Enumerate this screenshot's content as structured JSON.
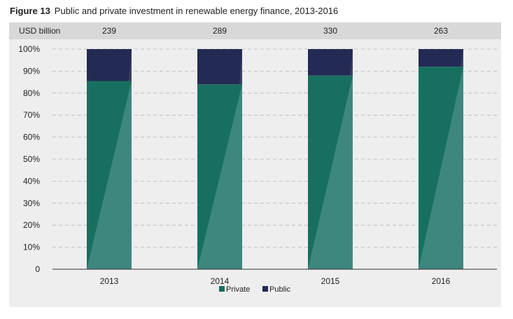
{
  "figure": {
    "number": "Figure 13",
    "title": "Public and private investment in renewable energy finance, 2013-2016"
  },
  "colors": {
    "private": "#17705f",
    "private_highlight": "#3e877e",
    "public": "#232a53",
    "public_highlight": "#3a3f65",
    "gridline": "#b9b9b9",
    "axis": "#333333",
    "header_band": "#d8d8d8",
    "panel": "#eeeeee"
  },
  "chart_data": {
    "type": "bar",
    "stacked": true,
    "normalized": true,
    "title": "Public and private investment in renewable energy finance, 2013-2016",
    "categories": [
      "2013",
      "2014",
      "2015",
      "2016"
    ],
    "totals_label": "USD billion",
    "totals": [
      "239",
      "289",
      "330",
      "263"
    ],
    "series": [
      {
        "name": "Private",
        "values": [
          85.5,
          84,
          88,
          92
        ]
      },
      {
        "name": "Public",
        "values": [
          14.5,
          16,
          12,
          8
        ]
      }
    ],
    "ylim": [
      0,
      100
    ],
    "yticks": [
      0,
      10,
      20,
      30,
      40,
      50,
      60,
      70,
      80,
      90,
      100
    ],
    "ytick_labels": [
      "0",
      "10%",
      "20%",
      "30%",
      "40%",
      "50%",
      "60%",
      "70%",
      "80%",
      "90%",
      "100%"
    ],
    "grid": true,
    "legend_position": "bottom-center"
  }
}
